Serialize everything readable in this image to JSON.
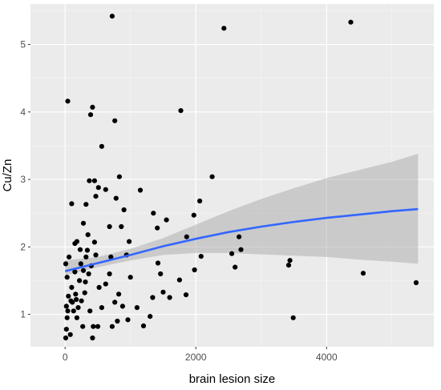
{
  "chart_data": {
    "type": "scatter",
    "xlabel": "brain lesion size",
    "ylabel": "Cu/Zn",
    "xlim": [
      -530,
      5640
    ],
    "ylim": [
      0.52,
      5.6
    ],
    "x_ticks": [
      0,
      2000,
      4000
    ],
    "y_ticks": [
      1,
      2,
      3,
      4,
      5
    ],
    "x_tick_labels": [
      "0",
      "2000",
      "4000"
    ],
    "y_tick_labels": [
      "1",
      "2",
      "3",
      "4",
      "5"
    ],
    "grid": true,
    "colors": {
      "panel": "#ebebeb",
      "grid_major": "#ffffff",
      "grid_minor": "#f5f5f5",
      "points": "#000000",
      "trend_line": "#3366ff",
      "confidence_band": "#999999"
    },
    "points": [
      {
        "x": 10,
        "y": 0.65
      },
      {
        "x": 20,
        "y": 0.78
      },
      {
        "x": 30,
        "y": 0.95
      },
      {
        "x": 40,
        "y": 1.05
      },
      {
        "x": 20,
        "y": 1.12
      },
      {
        "x": 50,
        "y": 1.27
      },
      {
        "x": 30,
        "y": 1.55
      },
      {
        "x": 10,
        "y": 1.75
      },
      {
        "x": 60,
        "y": 1.85
      },
      {
        "x": 80,
        "y": 0.7
      },
      {
        "x": 90,
        "y": 1.2
      },
      {
        "x": 100,
        "y": 1.4
      },
      {
        "x": 110,
        "y": 1.18
      },
      {
        "x": 130,
        "y": 1.05
      },
      {
        "x": 150,
        "y": 1.63
      },
      {
        "x": 160,
        "y": 1.3
      },
      {
        "x": 170,
        "y": 1.22
      },
      {
        "x": 180,
        "y": 0.95
      },
      {
        "x": 200,
        "y": 1.1
      },
      {
        "x": 220,
        "y": 1.5
      },
      {
        "x": 240,
        "y": 1.75
      },
      {
        "x": 250,
        "y": 1.2
      },
      {
        "x": 270,
        "y": 0.82
      },
      {
        "x": 280,
        "y": 1.65
      },
      {
        "x": 300,
        "y": 1.32
      },
      {
        "x": 310,
        "y": 1.48
      },
      {
        "x": 320,
        "y": 1.85
      },
      {
        "x": 340,
        "y": 1.95
      },
      {
        "x": 360,
        "y": 1.6
      },
      {
        "x": 380,
        "y": 1.05
      },
      {
        "x": 400,
        "y": 1.72
      },
      {
        "x": 420,
        "y": 0.65
      },
      {
        "x": 430,
        "y": 0.82
      },
      {
        "x": 450,
        "y": 2.07
      },
      {
        "x": 470,
        "y": 1.88
      },
      {
        "x": 500,
        "y": 0.82
      },
      {
        "x": 520,
        "y": 1.4
      },
      {
        "x": 560,
        "y": 1.1
      },
      {
        "x": 620,
        "y": 1.45
      },
      {
        "x": 680,
        "y": 1.6
      },
      {
        "x": 720,
        "y": 0.82
      },
      {
        "x": 760,
        "y": 1.18
      },
      {
        "x": 800,
        "y": 0.9
      },
      {
        "x": 820,
        "y": 1.3
      },
      {
        "x": 880,
        "y": 1.12
      },
      {
        "x": 960,
        "y": 0.92
      },
      {
        "x": 40,
        "y": 4.16
      },
      {
        "x": 100,
        "y": 2.64
      },
      {
        "x": 150,
        "y": 2.05
      },
      {
        "x": 180,
        "y": 2.08
      },
      {
        "x": 230,
        "y": 1.96
      },
      {
        "x": 280,
        "y": 2.35
      },
      {
        "x": 320,
        "y": 2.63
      },
      {
        "x": 350,
        "y": 2.18
      },
      {
        "x": 370,
        "y": 2.98
      },
      {
        "x": 390,
        "y": 3.96
      },
      {
        "x": 420,
        "y": 4.07
      },
      {
        "x": 450,
        "y": 2.98
      },
      {
        "x": 470,
        "y": 2.75
      },
      {
        "x": 510,
        "y": 2.88
      },
      {
        "x": 560,
        "y": 3.49
      },
      {
        "x": 620,
        "y": 2.85
      },
      {
        "x": 680,
        "y": 2.3
      },
      {
        "x": 700,
        "y": 1.85
      },
      {
        "x": 720,
        "y": 5.42
      },
      {
        "x": 760,
        "y": 3.87
      },
      {
        "x": 780,
        "y": 2.72
      },
      {
        "x": 830,
        "y": 3.04
      },
      {
        "x": 860,
        "y": 2.3
      },
      {
        "x": 900,
        "y": 2.55
      },
      {
        "x": 940,
        "y": 1.88
      },
      {
        "x": 980,
        "y": 2.08
      },
      {
        "x": 1000,
        "y": 1.55
      },
      {
        "x": 1100,
        "y": 1.1
      },
      {
        "x": 1150,
        "y": 2.84
      },
      {
        "x": 1200,
        "y": 0.83
      },
      {
        "x": 1300,
        "y": 0.97
      },
      {
        "x": 1340,
        "y": 1.25
      },
      {
        "x": 1350,
        "y": 2.5
      },
      {
        "x": 1410,
        "y": 2.28
      },
      {
        "x": 1420,
        "y": 1.76
      },
      {
        "x": 1460,
        "y": 1.6
      },
      {
        "x": 1500,
        "y": 1.33
      },
      {
        "x": 1550,
        "y": 2.4
      },
      {
        "x": 1600,
        "y": 1.25
      },
      {
        "x": 1750,
        "y": 1.51
      },
      {
        "x": 1770,
        "y": 4.02
      },
      {
        "x": 1850,
        "y": 1.29
      },
      {
        "x": 1860,
        "y": 2.15
      },
      {
        "x": 1970,
        "y": 2.47
      },
      {
        "x": 1980,
        "y": 1.66
      },
      {
        "x": 2060,
        "y": 2.68
      },
      {
        "x": 2080,
        "y": 1.86
      },
      {
        "x": 2250,
        "y": 3.04
      },
      {
        "x": 2430,
        "y": 5.24
      },
      {
        "x": 2550,
        "y": 1.9
      },
      {
        "x": 2600,
        "y": 1.7
      },
      {
        "x": 2660,
        "y": 2.15
      },
      {
        "x": 2690,
        "y": 1.96
      },
      {
        "x": 3420,
        "y": 1.73
      },
      {
        "x": 3440,
        "y": 1.8
      },
      {
        "x": 3490,
        "y": 0.95
      },
      {
        "x": 4370,
        "y": 5.33
      },
      {
        "x": 4560,
        "y": 1.61
      },
      {
        "x": 5370,
        "y": 1.47
      }
    ],
    "trend": {
      "x": [
        0,
        500,
        1000,
        1500,
        2000,
        2500,
        3000,
        3500,
        4000,
        4500,
        5000,
        5400
      ],
      "y": [
        1.64,
        1.76,
        1.88,
        2.01,
        2.12,
        2.22,
        2.3,
        2.37,
        2.43,
        2.48,
        2.53,
        2.56
      ],
      "lower": [
        1.58,
        1.7,
        1.8,
        1.88,
        1.91,
        1.91,
        1.89,
        1.87,
        1.85,
        1.81,
        1.78,
        1.75
      ],
      "upper": [
        1.8,
        1.85,
        1.97,
        2.13,
        2.33,
        2.53,
        2.71,
        2.87,
        3.02,
        3.14,
        3.26,
        3.38
      ]
    }
  }
}
